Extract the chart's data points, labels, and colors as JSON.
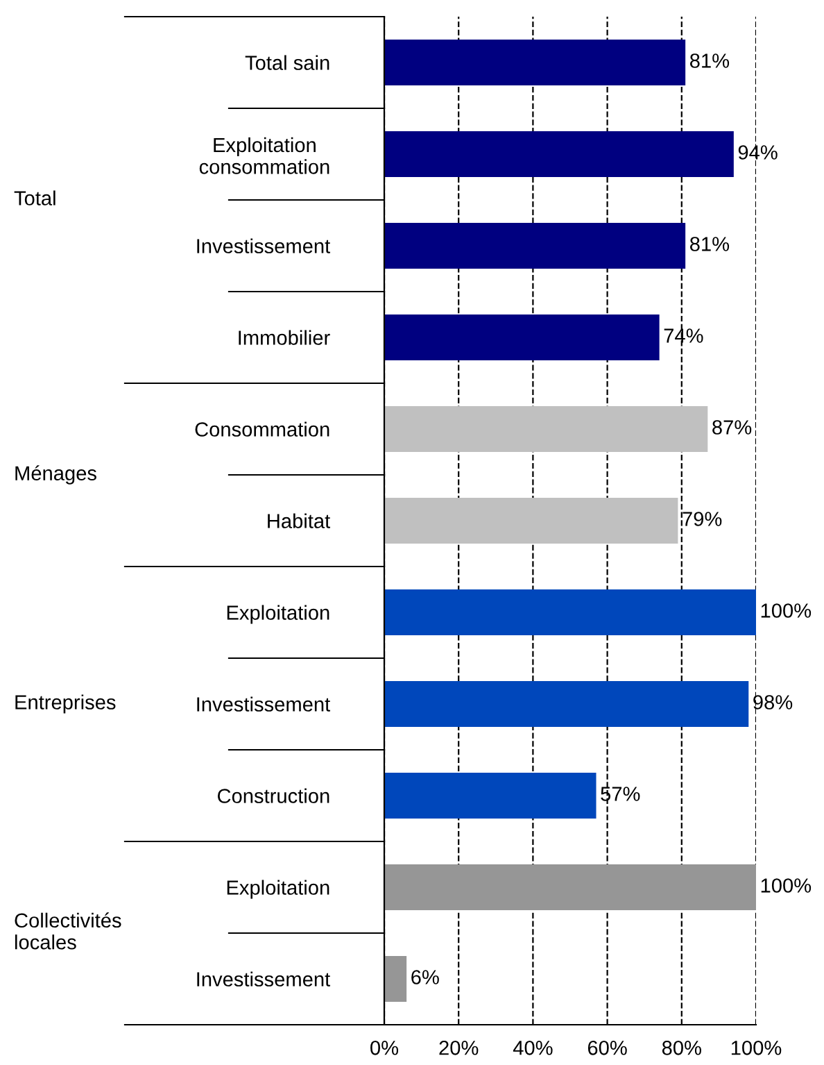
{
  "chart_data": {
    "type": "bar",
    "orientation": "horizontal",
    "categories": [
      "Total sain",
      "Exploitation\nconsommation",
      "Investissement",
      "Immobilier",
      "Consommation",
      "Habitat",
      "Exploitation",
      "Investissement",
      "Construction",
      "Exploitation",
      "Investissement"
    ],
    "values": [
      81,
      94,
      81,
      74,
      87,
      79,
      100,
      98,
      57,
      100,
      6
    ],
    "colors": [
      "#000080",
      "#000080",
      "#000080",
      "#000080",
      "#c0c0c0",
      "#c0c0c0",
      "#0047bb",
      "#0047bb",
      "#0047bb",
      "#969696",
      "#969696"
    ],
    "value_labels": [
      "81%",
      "94%",
      "81%",
      "74%",
      "87%",
      "79%",
      "100%",
      "98%",
      "57%",
      "100%",
      "6%"
    ],
    "annotations": [
      "Total",
      "Ménages",
      "Entreprises",
      "Collectivités\nlocales"
    ],
    "xlim": [
      0,
      100
    ],
    "xticks": [
      {
        "value": 0,
        "label": "0%"
      },
      {
        "value": 20,
        "label": "20%"
      },
      {
        "value": 40,
        "label": "40%"
      },
      {
        "value": 60,
        "label": "60%"
      },
      {
        "value": 80,
        "label": "80%"
      },
      {
        "value": 100,
        "label": "100%"
      }
    ],
    "grid": "x",
    "line_style": "dashed",
    "legend": false
  }
}
